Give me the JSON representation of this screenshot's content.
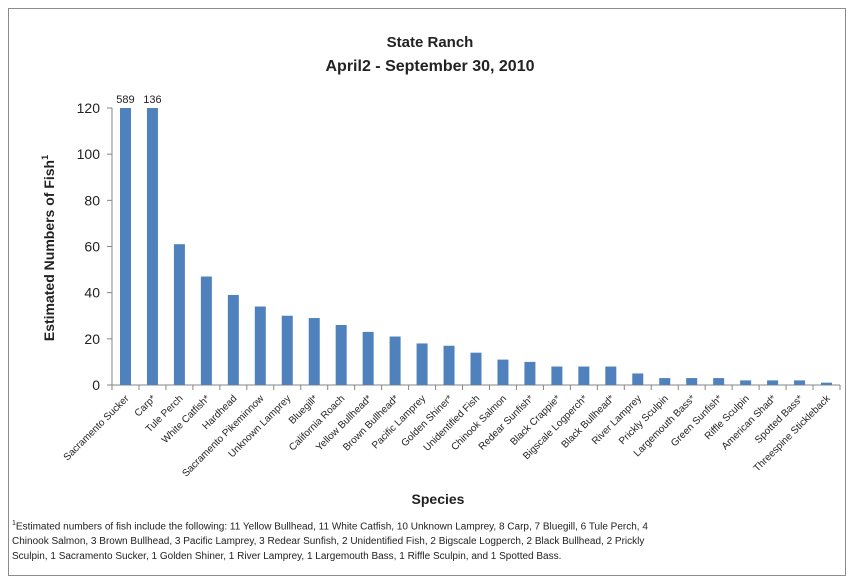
{
  "chart_data": {
    "type": "bar",
    "title": "State Ranch",
    "subtitle": "April2 - September 30, 2010",
    "xlabel": "Species",
    "ylabel": "Estimated Numbers of Fish",
    "ylabel_sup": "1",
    "ylim": [
      0,
      120
    ],
    "yticks": [
      "0",
      "20",
      "40",
      "60",
      "80",
      "100",
      "120"
    ],
    "grid": false,
    "bar_color": "#4f81bd",
    "categories": [
      "Sacramento Sucker",
      "Carp*",
      "Tule Perch",
      "White Catfish*",
      "Hardhead",
      "Sacramento Pikeminnow",
      "Unknown Lamprey",
      "Bluegill*",
      "California Roach",
      "Yellow Bullhead*",
      "Brown Bullhead*",
      "Pacific Lamprey",
      "Golden Shiner*",
      "Unidentified Fish",
      "Chinook Salmon",
      "Redear Sunfish*",
      "Black Crappie*",
      "Bigscale Logperch*",
      "Black Bullhead*",
      "River Lamprey",
      "Prickly Sculpin",
      "Largemouth Bass*",
      "Green Sunfish*",
      "Riffle Sculpin",
      "American Shad*",
      "Spotted Bass*",
      "Threespine Stickleback"
    ],
    "values": [
      589,
      136,
      61,
      47,
      39,
      34,
      30,
      29,
      26,
      23,
      21,
      18,
      17,
      14,
      11,
      10,
      8,
      8,
      8,
      5,
      3,
      3,
      3,
      2,
      2,
      2,
      1
    ],
    "data_labels": [
      "589",
      "136",
      null,
      null,
      null,
      null,
      null,
      null,
      null,
      null,
      null,
      null,
      null,
      null,
      null,
      null,
      null,
      null,
      null,
      null,
      null,
      null,
      null,
      null,
      null,
      null,
      null
    ]
  },
  "footnote": {
    "sup": "1",
    "text": "Estimated numbers of fish include the following: 11 Yellow Bullhead, 11 White Catfish, 10 Unknown Lamprey, 8 Carp, 7 Bluegill, 6 Tule Perch, 4 Chinook Salmon, 3 Brown Bullhead, 3 Pacific Lamprey, 3 Redear Sunfish, 2 Unidentified Fish, 2 Bigscale Logperch, 2 Black Bullhead, 2 Prickly Sculpin, 1 Sacramento Sucker, 1 Golden Shiner, 1 River Lamprey, 1 Largemouth Bass, 1 Riffle Sculpin, and 1 Spotted Bass."
  }
}
